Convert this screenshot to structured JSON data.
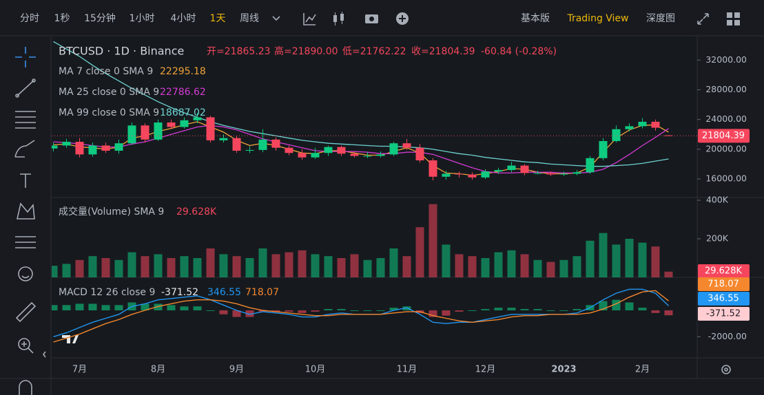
{
  "toolbar": {
    "intervals": [
      "分时",
      "1秒",
      "15分钟",
      "1小时",
      "4小时",
      "1天",
      "周线"
    ],
    "active_interval": 5,
    "views": [
      "基本版",
      "Trading View",
      "深度图"
    ],
    "active_view": 1
  },
  "chart_data": [
    {
      "type": "candlestick",
      "title": "BTCUSD · 1D · Binance",
      "header": [
        "开=21865.23",
        "高=21890.00",
        "低=21762.22",
        "收=21804.39",
        "-60.84 (-0.28%)"
      ],
      "categories": [
        null,
        null,
        "7月",
        null,
        null,
        null,
        null,
        null,
        "8月",
        null,
        null,
        null,
        null,
        null,
        "9月",
        null,
        null,
        null,
        null,
        null,
        "10月",
        null,
        null,
        null,
        null,
        null,
        null,
        "11月",
        null,
        null,
        null,
        null,
        null,
        "12月",
        null,
        null,
        null,
        null,
        null,
        "2023",
        null,
        null,
        null,
        null,
        null,
        "2月",
        null,
        null
      ],
      "open": [
        20100,
        20500,
        21000,
        19300,
        20500,
        19800,
        20800,
        23200,
        21300,
        23600,
        23000,
        23900,
        24300,
        21200,
        21500,
        19800,
        19900,
        21300,
        20200,
        19500,
        18900,
        19500,
        20300,
        19400,
        19100,
        19100,
        19300,
        20800,
        20200,
        18500,
        16300,
        16700,
        16600,
        16200,
        17000,
        17200,
        17800,
        16800,
        16800,
        16600,
        16700,
        16900,
        18800,
        21100,
        22700,
        23100,
        23700,
        21865.23
      ],
      "high": [
        20900,
        21400,
        21500,
        20900,
        20900,
        21300,
        23600,
        23500,
        24000,
        24000,
        24300,
        24900,
        24500,
        22000,
        21800,
        20400,
        22700,
        21600,
        20500,
        20000,
        20200,
        20500,
        20500,
        19700,
        19600,
        19700,
        21000,
        21400,
        20700,
        18800,
        17100,
        17000,
        16900,
        17300,
        17500,
        18300,
        18000,
        17100,
        17000,
        17000,
        17200,
        19100,
        21500,
        23200,
        23500,
        24200,
        24000,
        21890
      ],
      "low": [
        19700,
        20200,
        18900,
        19000,
        19500,
        19400,
        20600,
        20900,
        21100,
        22700,
        22800,
        23500,
        20900,
        20900,
        19500,
        19500,
        19600,
        19800,
        19200,
        18600,
        18700,
        19100,
        19100,
        18900,
        18800,
        18900,
        19100,
        19900,
        18200,
        15800,
        15900,
        16200,
        15900,
        16000,
        16700,
        16900,
        16500,
        16600,
        16400,
        16400,
        16500,
        16700,
        18500,
        20900,
        22400,
        22800,
        22500,
        21762.22
      ],
      "close": [
        20500,
        21000,
        19300,
        20500,
        19800,
        20800,
        23200,
        21300,
        23600,
        23000,
        23900,
        24300,
        21200,
        21500,
        19800,
        19900,
        21300,
        20200,
        19500,
        18900,
        19500,
        20300,
        19400,
        19100,
        19100,
        19300,
        20800,
        20200,
        18500,
        16300,
        16700,
        16600,
        16200,
        17000,
        17200,
        17800,
        16800,
        16800,
        16600,
        16700,
        16900,
        18800,
        21100,
        22700,
        23100,
        23700,
        22900,
        21804.39
      ],
      "up_color": "#0ecb81",
      "down_color": "#f6465d",
      "series": [
        {
          "name": "MA 7 close 0 SMA 9",
          "color": "#f0a33a",
          "values": [
            20600,
            20700,
            20300,
            20200,
            20000,
            20300,
            21500,
            21800,
            22400,
            22800,
            23300,
            23700,
            23000,
            22300,
            21200,
            20500,
            20800,
            20500,
            20000,
            19500,
            19400,
            19800,
            19800,
            19500,
            19200,
            19200,
            19700,
            20200,
            19500,
            17800,
            16800,
            16700,
            16500,
            16700,
            17000,
            17400,
            17300,
            16900,
            16700,
            16700,
            16800,
            17600,
            19600,
            21500,
            22600,
            23200,
            23300,
            22295.18
          ]
        },
        {
          "name": "MA 25 close 0 SMA 9",
          "color": "#d53ad5",
          "values": [
            21000,
            20900,
            20700,
            20500,
            20300,
            20300,
            20700,
            21000,
            21500,
            22000,
            22500,
            23000,
            23200,
            23000,
            22600,
            22000,
            21400,
            21000,
            20600,
            20200,
            19800,
            19700,
            19700,
            19700,
            19600,
            19400,
            19400,
            19600,
            19600,
            19300,
            18700,
            18100,
            17500,
            17000,
            16800,
            16800,
            16900,
            16900,
            16900,
            16800,
            16800,
            16900,
            17300,
            18200,
            19300,
            20500,
            21600,
            22786.62
          ]
        },
        {
          "name": "MA 99 close 0 SMA 9",
          "color": "#6fd3d3",
          "values": [
            34500,
            33500,
            32500,
            31300,
            30200,
            29200,
            28200,
            27300,
            26400,
            25600,
            24900,
            24300,
            23700,
            23200,
            22800,
            22400,
            22100,
            21800,
            21500,
            21200,
            21000,
            20800,
            20700,
            20600,
            20500,
            20400,
            20400,
            20300,
            20200,
            20000,
            19700,
            19400,
            19200,
            18900,
            18700,
            18500,
            18300,
            18200,
            18000,
            17900,
            17800,
            17700,
            17700,
            17800,
            17900,
            18100,
            18400,
            18687.02
          ]
        }
      ],
      "ylim": [
        13500,
        35000
      ],
      "yticks": [
        {
          "value": 32000,
          "label": "32000.00"
        },
        {
          "value": 28000,
          "label": "28000.00"
        },
        {
          "value": 24000,
          "label": "24000.00"
        },
        {
          "value": 20000,
          "label": "20000.00"
        },
        {
          "value": 16000,
          "label": "16000.00"
        }
      ],
      "last_price_line": true
    },
    {
      "type": "volume",
      "title": "成交量(Volume) SMA 9",
      "values": [
        60000,
        70000,
        90000,
        110000,
        100000,
        90000,
        130000,
        110000,
        120000,
        100000,
        110000,
        100000,
        150000,
        120000,
        110000,
        100000,
        150000,
        120000,
        130000,
        140000,
        120000,
        110000,
        100000,
        120000,
        90000,
        100000,
        150000,
        110000,
        260000,
        380000,
        170000,
        120000,
        110000,
        100000,
        130000,
        140000,
        120000,
        90000,
        80000,
        90000,
        110000,
        190000,
        230000,
        170000,
        200000,
        180000,
        160000,
        29628
      ],
      "last_value_label": "29.628K",
      "ylim": [
        0,
        400000
      ],
      "yticks": [
        {
          "value": 400000,
          "label": "400K"
        },
        {
          "value": 200000,
          "label": "200K"
        }
      ]
    },
    {
      "type": "macd",
      "title": "MACD 12 26 close 9",
      "histogram": [
        400,
        400,
        500,
        500,
        400,
        400,
        600,
        500,
        500,
        400,
        300,
        300,
        0,
        -300,
        -500,
        -500,
        -100,
        -100,
        -100,
        -200,
        -100,
        100,
        100,
        0,
        0,
        0,
        200,
        300,
        -200,
        -500,
        -400,
        -100,
        0,
        100,
        200,
        200,
        100,
        100,
        0,
        0,
        100,
        400,
        700,
        800,
        600,
        200,
        -200,
        -371.52
      ],
      "macd": [
        -2000,
        -1700,
        -1300,
        -900,
        -600,
        -300,
        300,
        500,
        800,
        900,
        1000,
        1100,
        800,
        400,
        0,
        -300,
        -100,
        -200,
        -300,
        -500,
        -500,
        -300,
        -200,
        -300,
        -300,
        -300,
        0,
        200,
        -300,
        -900,
        -1000,
        -900,
        -900,
        -700,
        -500,
        -300,
        -300,
        -300,
        -300,
        -300,
        -200,
        200,
        800,
        1300,
        1600,
        1600,
        1300,
        346.55
      ],
      "signal": [
        -2400,
        -2100,
        -1800,
        -1400,
        -1000,
        -700,
        -300,
        0,
        300,
        500,
        700,
        800,
        800,
        700,
        500,
        200,
        0,
        -100,
        -200,
        -300,
        -400,
        -400,
        -300,
        -300,
        -300,
        -300,
        -200,
        -100,
        -100,
        -400,
        -600,
        -800,
        -900,
        -800,
        -700,
        -500,
        -400,
        -400,
        -300,
        -300,
        -300,
        -200,
        100,
        500,
        1000,
        1400,
        1500,
        718.07
      ],
      "macd_color": "#2196f3",
      "signal_color": "#f5872e",
      "ylim": [
        -3600,
        2400
      ],
      "yticks": [
        {
          "value": -2000,
          "label": "-2000.00"
        }
      ]
    }
  ]
}
